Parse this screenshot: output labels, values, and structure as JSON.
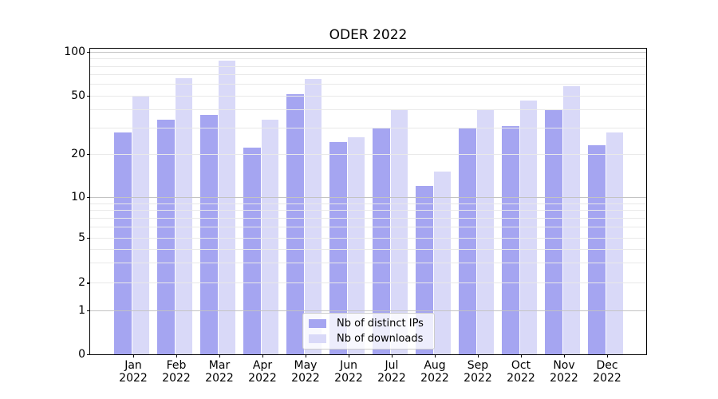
{
  "chart": {
    "title": "ODER 2022"
  },
  "chart_data": {
    "type": "bar",
    "title": "ODER 2022",
    "xlabel": "",
    "ylabel": "",
    "categories": [
      {
        "month": "Jan",
        "year": "2022"
      },
      {
        "month": "Feb",
        "year": "2022"
      },
      {
        "month": "Mar",
        "year": "2022"
      },
      {
        "month": "Apr",
        "year": "2022"
      },
      {
        "month": "May",
        "year": "2022"
      },
      {
        "month": "Jun",
        "year": "2022"
      },
      {
        "month": "Jul",
        "year": "2022"
      },
      {
        "month": "Aug",
        "year": "2022"
      },
      {
        "month": "Sep",
        "year": "2022"
      },
      {
        "month": "Oct",
        "year": "2022"
      },
      {
        "month": "Nov",
        "year": "2022"
      },
      {
        "month": "Dec",
        "year": "2022"
      }
    ],
    "series": [
      {
        "name": "Nb of distinct IPs",
        "color": "#a5a5f1",
        "values": [
          28,
          34,
          37,
          22,
          51,
          24,
          30,
          12,
          30,
          31,
          40,
          23
        ]
      },
      {
        "name": "Nb of downloads",
        "color": "#d9d9f8",
        "values": [
          50,
          66,
          87,
          34,
          65,
          26,
          40,
          15,
          40,
          46,
          58,
          28
        ]
      }
    ],
    "yticks": [
      100,
      50,
      20,
      10,
      5,
      2,
      1,
      0
    ],
    "major_gridlines": [
      1,
      10,
      100
    ],
    "minor_gridlines": [
      2,
      3,
      4,
      5,
      6,
      7,
      8,
      9,
      20,
      30,
      40,
      50,
      60,
      70,
      80,
      90
    ],
    "y_scale": {
      "type": "symlog-like",
      "ylim": [
        0,
        106
      ],
      "anchors": [
        [
          0,
          0.0
        ],
        [
          1,
          0.1438
        ],
        [
          2,
          0.234
        ],
        [
          5,
          0.3817
        ],
        [
          10,
          0.515
        ],
        [
          20,
          0.6562
        ],
        [
          50,
          0.8471
        ],
        [
          100,
          0.9895
        ]
      ]
    },
    "legend": {
      "position": "lower center",
      "entries": [
        "Nb of distinct IPs",
        "Nb of downloads"
      ]
    },
    "grid": "both"
  }
}
